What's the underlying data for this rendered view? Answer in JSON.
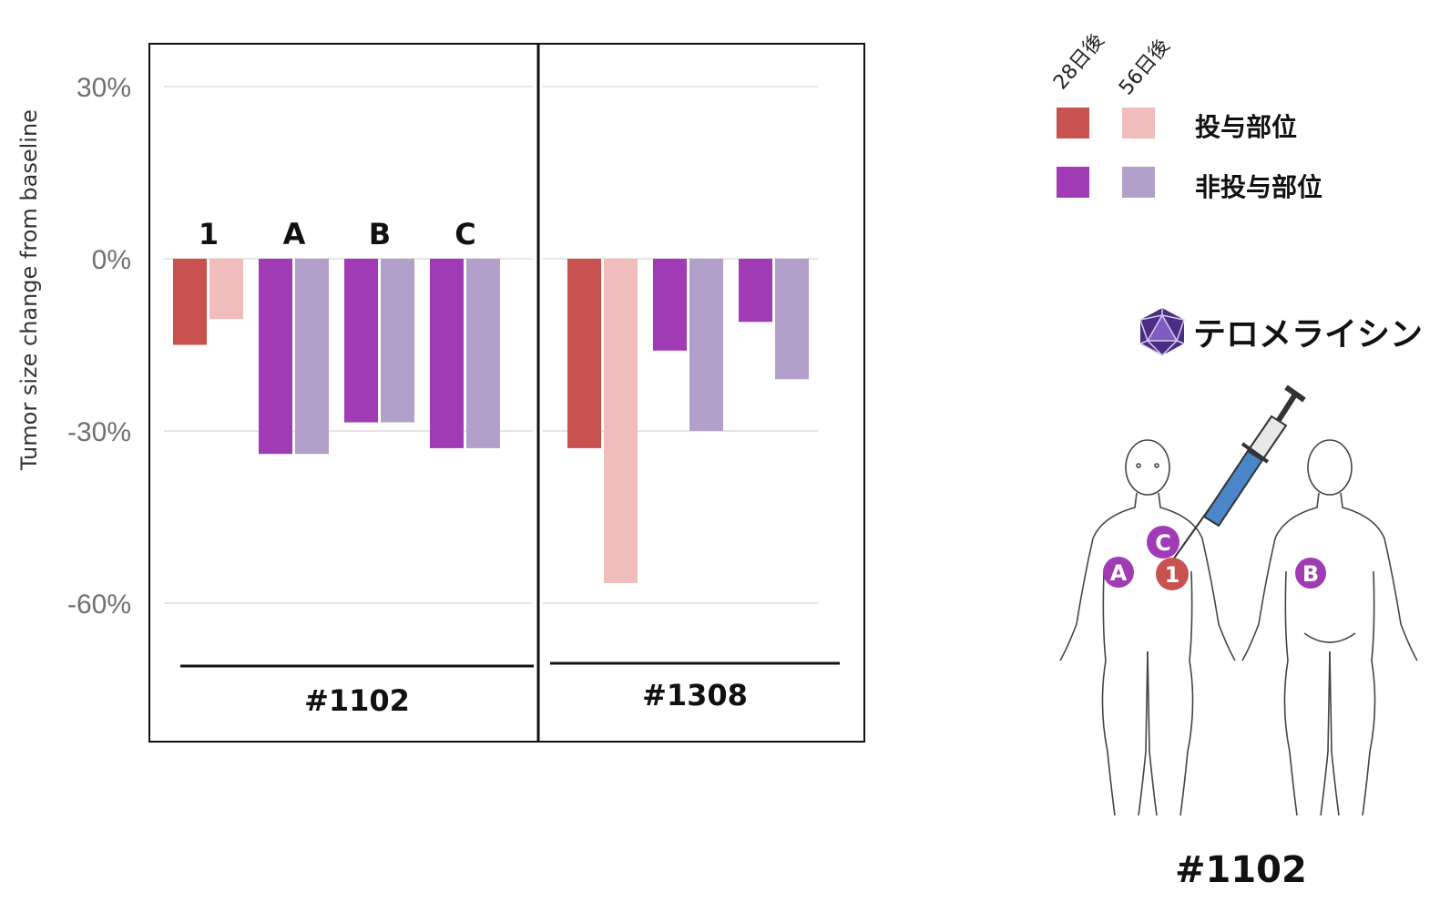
{
  "chart_data": {
    "type": "bar",
    "ylabel": "Tumor size change from baseline",
    "ylim": [
      -75,
      38
    ],
    "yticks": [
      {
        "value": 30,
        "label": "30%"
      },
      {
        "value": 0,
        "label": "0%"
      },
      {
        "value": -30,
        "label": "-30%"
      },
      {
        "value": -60,
        "label": "-60%"
      }
    ],
    "grid": true,
    "series": [
      {
        "name": "28日後",
        "kind": "first"
      },
      {
        "name": "56日後",
        "kind": "second"
      }
    ],
    "colors": {
      "injected_28": "#c85250",
      "injected_56": "#f0bcbc",
      "noninjected_28": "#a13ab5",
      "noninjected_56": "#b2a0ca"
    },
    "groups": [
      {
        "patient": "#1102",
        "sites": [
          {
            "label": "1",
            "injected": true,
            "values": [
              -15,
              -10.5
            ]
          },
          {
            "label": "A",
            "injected": false,
            "values": [
              -34,
              -34
            ]
          },
          {
            "label": "B",
            "injected": false,
            "values": [
              -28.5,
              -28.5
            ]
          },
          {
            "label": "C",
            "injected": false,
            "values": [
              -33,
              -33
            ]
          }
        ]
      },
      {
        "patient": "#1308",
        "sites": [
          {
            "label": "",
            "injected": true,
            "values": [
              -33,
              -56.5
            ]
          },
          {
            "label": "",
            "injected": false,
            "values": [
              -16,
              -30
            ]
          },
          {
            "label": "",
            "injected": false,
            "values": [
              -11,
              -21
            ]
          }
        ]
      }
    ]
  },
  "legend": {
    "col1": "28日後",
    "col2": "56日後",
    "row1_label": "投与部位",
    "row2_label": "非投与部位"
  },
  "drug": {
    "name": "テロメライシン"
  },
  "body_diagram": {
    "caption": "#1102",
    "sites": [
      {
        "label": "A",
        "color": "#a13ab5"
      },
      {
        "label": "C",
        "color": "#a13ab5"
      },
      {
        "label": "1",
        "color": "#c85250"
      },
      {
        "label": "B",
        "color": "#a13ab5"
      }
    ]
  }
}
